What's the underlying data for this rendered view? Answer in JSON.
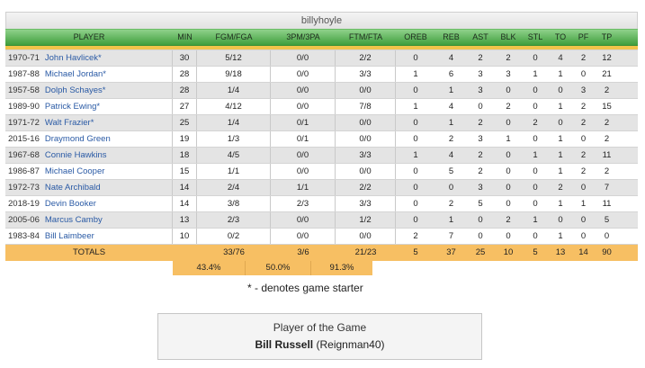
{
  "team": {
    "name": "billyhoyle"
  },
  "columns": [
    "PLAYER",
    "MIN",
    "FGM/FGA",
    "3PM/3PA",
    "FTM/FTA",
    "OREB",
    "REB",
    "AST",
    "BLK",
    "STL",
    "TO",
    "PF",
    "TP"
  ],
  "players": [
    {
      "year": "1970-71",
      "name": "John Havlicek*",
      "stats": [
        "30",
        "5/12",
        "0/0",
        "2/2",
        "0",
        "4",
        "2",
        "2",
        "0",
        "4",
        "2",
        "12"
      ]
    },
    {
      "year": "1987-88",
      "name": "Michael Jordan*",
      "stats": [
        "28",
        "9/18",
        "0/0",
        "3/3",
        "1",
        "6",
        "3",
        "3",
        "1",
        "1",
        "0",
        "21"
      ]
    },
    {
      "year": "1957-58",
      "name": "Dolph Schayes*",
      "stats": [
        "28",
        "1/4",
        "0/0",
        "0/0",
        "0",
        "1",
        "3",
        "0",
        "0",
        "0",
        "3",
        "2"
      ]
    },
    {
      "year": "1989-90",
      "name": "Patrick Ewing*",
      "stats": [
        "27",
        "4/12",
        "0/0",
        "7/8",
        "1",
        "4",
        "0",
        "2",
        "0",
        "1",
        "2",
        "15"
      ]
    },
    {
      "year": "1971-72",
      "name": "Walt Frazier*",
      "stats": [
        "25",
        "1/4",
        "0/1",
        "0/0",
        "0",
        "1",
        "2",
        "0",
        "2",
        "0",
        "2",
        "2"
      ]
    },
    {
      "year": "2015-16",
      "name": "Draymond Green",
      "stats": [
        "19",
        "1/3",
        "0/1",
        "0/0",
        "0",
        "2",
        "3",
        "1",
        "0",
        "1",
        "0",
        "2"
      ]
    },
    {
      "year": "1967-68",
      "name": "Connie Hawkins",
      "stats": [
        "18",
        "4/5",
        "0/0",
        "3/3",
        "1",
        "4",
        "2",
        "0",
        "1",
        "1",
        "2",
        "11"
      ]
    },
    {
      "year": "1986-87",
      "name": "Michael Cooper",
      "stats": [
        "15",
        "1/1",
        "0/0",
        "0/0",
        "0",
        "5",
        "2",
        "0",
        "0",
        "1",
        "2",
        "2"
      ]
    },
    {
      "year": "1972-73",
      "name": "Nate Archibald",
      "stats": [
        "14",
        "2/4",
        "1/1",
        "2/2",
        "0",
        "0",
        "3",
        "0",
        "0",
        "2",
        "0",
        "7"
      ]
    },
    {
      "year": "2018-19",
      "name": "Devin Booker",
      "stats": [
        "14",
        "3/8",
        "2/3",
        "3/3",
        "0",
        "2",
        "5",
        "0",
        "0",
        "1",
        "1",
        "11"
      ]
    },
    {
      "year": "2005-06",
      "name": "Marcus Camby",
      "stats": [
        "13",
        "2/3",
        "0/0",
        "1/2",
        "0",
        "1",
        "0",
        "2",
        "1",
        "0",
        "0",
        "5"
      ]
    },
    {
      "year": "1983-84",
      "name": "Bill Laimbeer",
      "stats": [
        "10",
        "0/2",
        "0/0",
        "0/0",
        "2",
        "7",
        "0",
        "0",
        "0",
        "1",
        "0",
        "0"
      ]
    }
  ],
  "totals": {
    "label": "TOTALS",
    "stats": [
      "",
      "33/76",
      "3/6",
      "21/23",
      "5",
      "37",
      "25",
      "10",
      "5",
      "13",
      "14",
      "90"
    ],
    "pcts": [
      "43.4%",
      "50.0%",
      "91.3%"
    ]
  },
  "footnote": "* - denotes game starter",
  "potg": {
    "title": "Player of the Game",
    "name": "Bill Russell",
    "user": "(Reignman40)"
  },
  "colors": {
    "header_green": "#3f9e3c",
    "stripe_gold": "#f0c44a",
    "totals_orange": "#f7bf63",
    "link_blue": "#2a5aa5"
  }
}
